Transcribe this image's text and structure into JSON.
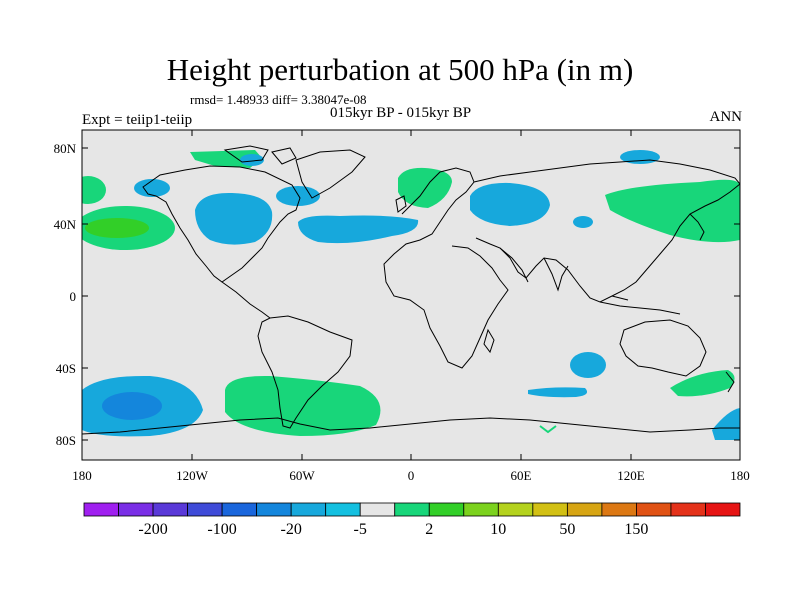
{
  "title": "Height perturbation at 500 hPa (in m)",
  "stats": "rmsd= 1.48933 diff= 3.38047e-08",
  "subtitle": "015kyr BP - 015kyr BP",
  "experiment": "Expt = teiip1-teiip",
  "season": "ANN",
  "map": {
    "projection": "cylindrical equidistant",
    "lon_range": [
      -180,
      180
    ],
    "lat_range": [
      -90,
      90
    ],
    "background_color": "#e6e6e6",
    "coastline_color": "#000000"
  },
  "axes": {
    "y_ticks": [
      "80N",
      "40N",
      "0",
      "40S",
      "80S"
    ],
    "x_ticks": [
      "180",
      "120W",
      "60W",
      "0",
      "60E",
      "120E",
      "180"
    ]
  },
  "colorbar": {
    "colors": [
      "#a020f0",
      "#7a2ee6",
      "#5a39d8",
      "#3f4bd8",
      "#1a66dc",
      "#1486dc",
      "#17a8dc",
      "#14c0e0",
      "#e6e6e6",
      "#18d67a",
      "#32cf28",
      "#7cd21e",
      "#b4d21e",
      "#d2c014",
      "#d7a513",
      "#dc7813",
      "#e05214",
      "#e4321a",
      "#e61414"
    ],
    "labels": [
      "-200",
      "-100",
      "-20",
      "-5",
      "2",
      "10",
      "50",
      "150"
    ]
  },
  "anomaly_regions": [
    {
      "name": "central-north-pacific-positive",
      "sign": "positive",
      "level_colors": [
        "#18d67a",
        "#32cf28"
      ]
    },
    {
      "name": "north-america-negative",
      "sign": "negative",
      "level_colors": [
        "#17a8dc"
      ]
    },
    {
      "name": "north-atlantic-negative",
      "sign": "negative",
      "level_colors": [
        "#17a8dc"
      ]
    },
    {
      "name": "scandinavia-positive",
      "sign": "positive",
      "level_colors": [
        "#18d67a"
      ]
    },
    {
      "name": "siberia-negative",
      "sign": "negative",
      "level_colors": [
        "#17a8dc"
      ]
    },
    {
      "name": "east-asia-positive",
      "sign": "positive",
      "level_colors": [
        "#18d67a"
      ]
    },
    {
      "name": "south-pacific-negative",
      "sign": "negative",
      "level_colors": [
        "#17a8dc",
        "#1486dc"
      ]
    },
    {
      "name": "southeast-pacific-positive",
      "sign": "positive",
      "level_colors": [
        "#18d67a"
      ]
    },
    {
      "name": "south-indian-negative",
      "sign": "negative",
      "level_colors": [
        "#17a8dc"
      ]
    },
    {
      "name": "southwest-pacific-positive",
      "sign": "positive",
      "level_colors": [
        "#18d67a"
      ]
    }
  ]
}
